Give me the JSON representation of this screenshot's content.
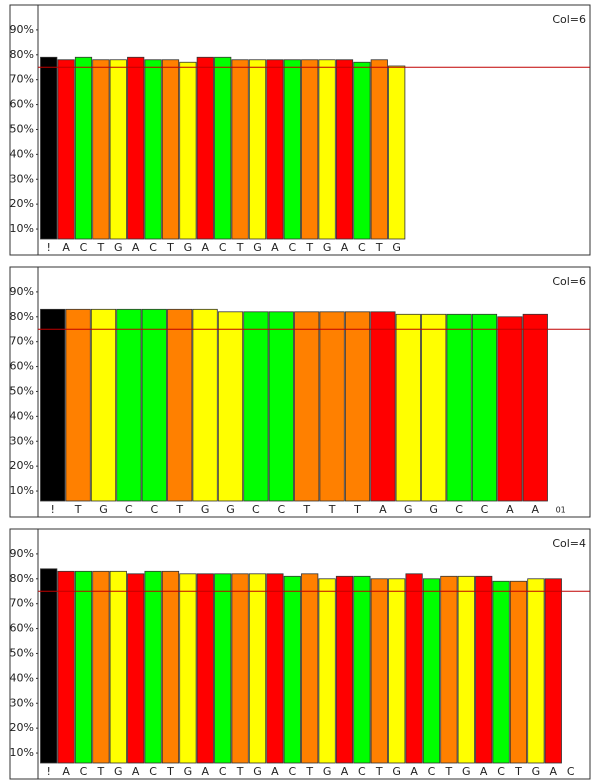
{
  "chart_data": [
    {
      "type": "bar",
      "annotation": "Col=6",
      "categories": [
        "!",
        "A",
        "C",
        "T",
        "G",
        "A",
        "C",
        "T",
        "G",
        "A",
        "C",
        "T",
        "G",
        "A",
        "C",
        "T",
        "G",
        "A",
        "C",
        "T",
        "G"
      ],
      "values": [
        79,
        78,
        79,
        78,
        78,
        79,
        78,
        78,
        77,
        79,
        79,
        78,
        78,
        78,
        78,
        78,
        78,
        78,
        77,
        78,
        75.5
      ],
      "color_map": {
        "!": "#000000",
        "A": "#ff0000",
        "C": "#00ff00",
        "T": "#ff8000",
        "G": "#ffff00"
      },
      "ylim": [
        6,
        100
      ],
      "yticks": [
        {
          "value": 10,
          "label": "10%"
        },
        {
          "value": 20,
          "label": "20%"
        },
        {
          "value": 30,
          "label": "30%"
        },
        {
          "value": 40,
          "label": "40%"
        },
        {
          "value": 50,
          "label": "50%"
        },
        {
          "value": 60,
          "label": "60%"
        },
        {
          "value": 70,
          "label": "70%"
        },
        {
          "value": 80,
          "label": "80%"
        },
        {
          "value": 90,
          "label": "90%"
        }
      ],
      "reference_line": {
        "value": 75,
        "color": "#c00000"
      }
    },
    {
      "type": "bar",
      "annotation": "Col=6",
      "categories": [
        "!",
        "T",
        "G",
        "C",
        "C",
        "T",
        "G",
        "G",
        "C",
        "C",
        "T",
        "T",
        "T",
        "A",
        "G",
        "G",
        "C",
        "C",
        "A",
        "A",
        "01"
      ],
      "values": [
        83,
        83,
        83,
        83,
        83,
        83,
        83,
        82,
        82,
        82,
        82,
        82,
        82,
        82,
        81,
        81,
        81,
        81,
        80,
        81,
        null
      ],
      "color_map": {
        "!": "#000000",
        "A": "#ff0000",
        "C": "#00ff00",
        "T": "#ff8000",
        "G": "#ffff00"
      },
      "ylim": [
        6,
        100
      ],
      "yticks": [
        {
          "value": 10,
          "label": "10%"
        },
        {
          "value": 20,
          "label": "20%"
        },
        {
          "value": 30,
          "label": "30%"
        },
        {
          "value": 40,
          "label": "40%"
        },
        {
          "value": 50,
          "label": "50%"
        },
        {
          "value": 60,
          "label": "60%"
        },
        {
          "value": 70,
          "label": "70%"
        },
        {
          "value": 80,
          "label": "80%"
        },
        {
          "value": 90,
          "label": "90%"
        }
      ],
      "reference_line": {
        "value": 75,
        "color": "#c00000"
      }
    },
    {
      "type": "bar",
      "annotation": "Col=4",
      "categories": [
        "!",
        "A",
        "C",
        "T",
        "G",
        "A",
        "C",
        "T",
        "G",
        "A",
        "C",
        "T",
        "G",
        "A",
        "C",
        "T",
        "G",
        "A",
        "C",
        "T",
        "G",
        "A",
        "C",
        "T",
        "G",
        "A",
        "C",
        "T",
        "G",
        "A",
        "C"
      ],
      "values": [
        84,
        83,
        83,
        83,
        83,
        82,
        83,
        83,
        82,
        82,
        82,
        82,
        82,
        82,
        81,
        82,
        80,
        81,
        81,
        80,
        80,
        82,
        80,
        81,
        81,
        81,
        79,
        79,
        80,
        80,
        null
      ],
      "color_map": {
        "!": "#000000",
        "A": "#ff0000",
        "C": "#00ff00",
        "T": "#ff8000",
        "G": "#ffff00"
      },
      "ylim": [
        6,
        100
      ],
      "yticks": [
        {
          "value": 10,
          "label": "10%"
        },
        {
          "value": 20,
          "label": "20%"
        },
        {
          "value": 30,
          "label": "30%"
        },
        {
          "value": 40,
          "label": "40%"
        },
        {
          "value": 50,
          "label": "50%"
        },
        {
          "value": 60,
          "label": "60%"
        },
        {
          "value": 70,
          "label": "70%"
        },
        {
          "value": 80,
          "label": "80%"
        },
        {
          "value": 90,
          "label": "90%"
        }
      ],
      "reference_line": {
        "value": 75,
        "color": "#c00000"
      }
    }
  ]
}
